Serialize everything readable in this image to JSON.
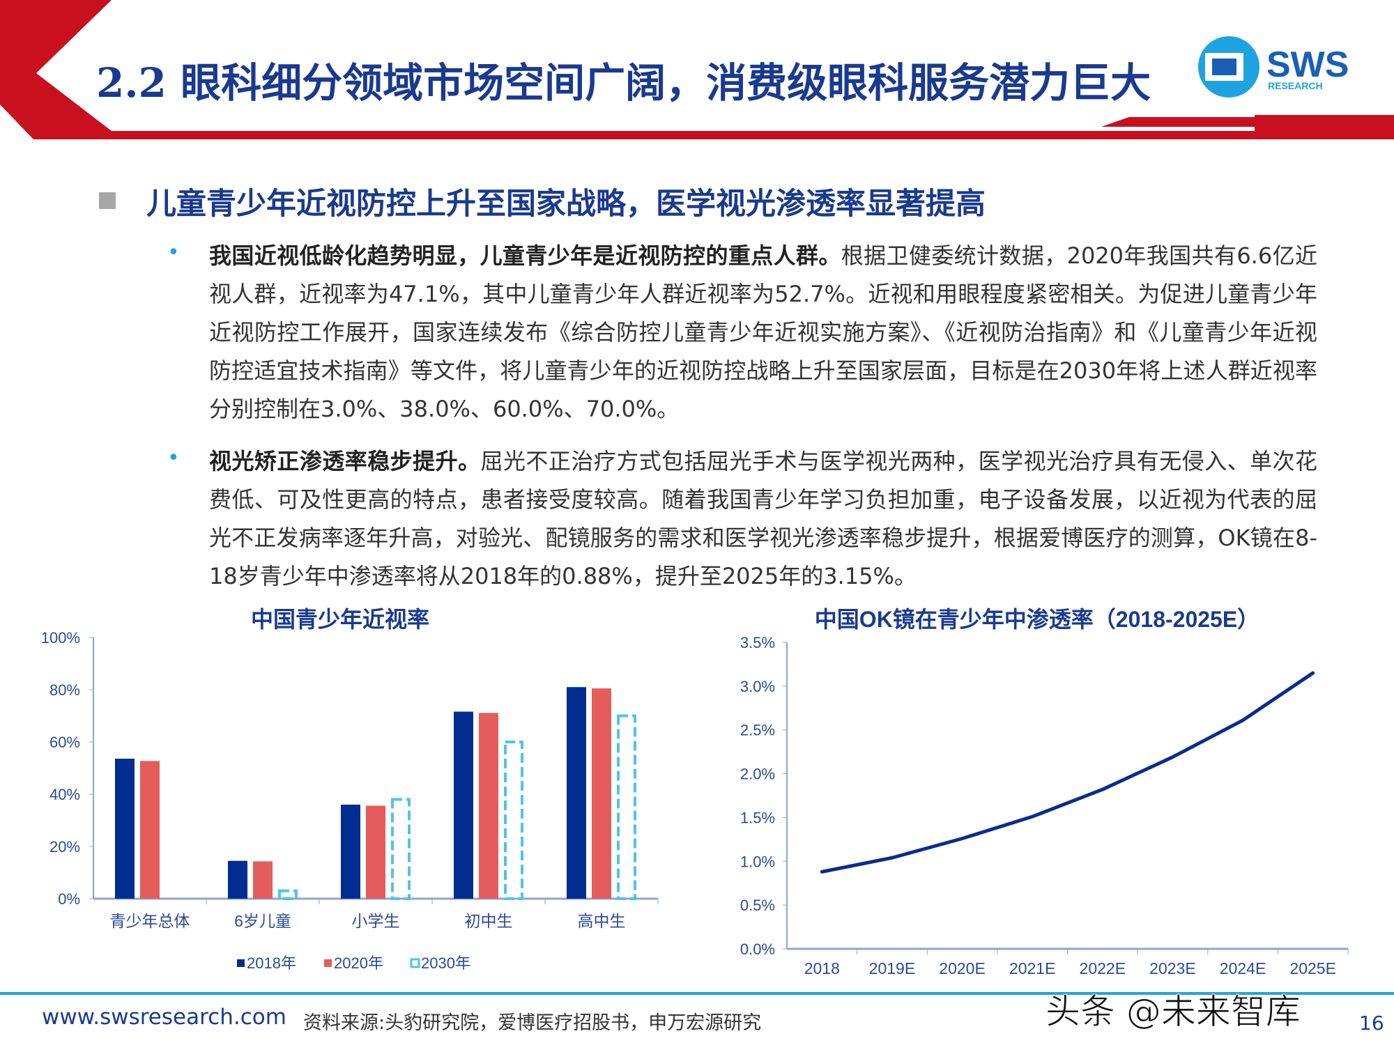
{
  "header": {
    "title": "2.2 眼科细分领域市场空间广阔，消费级眼科服务潜力巨大",
    "logo_text": "SWS",
    "logo_sub": "RESEARCH",
    "accent": "#c8101e"
  },
  "section": {
    "heading": "儿童青少年近视防控上升至国家战略，医学视光渗透率显著提高"
  },
  "bullets": [
    {
      "bold": "我国近视低龄化趋势明显，儿童青少年是近视防控的重点人群。",
      "text": "根据卫健委统计数据，2020年我国共有6.6亿近视人群，近视率为47.1%，其中儿童青少年人群近视率为52.7%。近视和用眼程度紧密相关。为促进儿童青少年近视防控工作展开，国家连续发布《综合防控儿童青少年近视实施方案》、《近视防治指南》和《儿童青少年近视防控适宜技术指南》等文件，将儿童青少年的近视防控战略上升至国家层面，目标是在2030年将上述人群近视率分别控制在3.0%、38.0%、60.0%、70.0%。"
    },
    {
      "bold": "视光矫正渗透率稳步提升。",
      "text": "屈光不正治疗方式包括屈光手术与医学视光两种，医学视光治疗具有无侵入、单次花费低、可及性更高的特点，患者接受度较高。随着我国青少年学习负担加重，电子设备发展，以近视为代表的屈光不正发病率逐年升高，对验光、配镜服务的需求和医学视光渗透率稳步提升，根据爱博医疗的测算，OK镜在8-18岁青少年中渗透率将从2018年的0.88%，提升至2025年的3.15%。"
    }
  ],
  "chart_data": [
    {
      "type": "bar",
      "title": "中国青少年近视率",
      "categories": [
        "青少年总体",
        "6岁儿童",
        "小学生",
        "初中生",
        "高中生"
      ],
      "yticks": [
        "0%",
        "20%",
        "40%",
        "60%",
        "80%",
        "100%"
      ],
      "ylim": [
        0,
        100
      ],
      "legend_position": "bottom",
      "series": [
        {
          "name": "2018年",
          "values": [
            53.6,
            14.5,
            36.0,
            71.6,
            81.0
          ],
          "color": "#002d8f",
          "style": "solid"
        },
        {
          "name": "2020年",
          "values": [
            52.7,
            14.3,
            35.6,
            71.1,
            80.5
          ],
          "color": "#e45c5c",
          "style": "solid"
        },
        {
          "name": "2030年",
          "values": [
            null,
            3.0,
            38.0,
            60.0,
            70.0
          ],
          "color": "#4dc3f0",
          "style": "dashed-outline"
        }
      ]
    },
    {
      "type": "line",
      "title": "中国OK镜在青少年中渗透率（2018-2025E）",
      "categories": [
        "2018",
        "2019E",
        "2020E",
        "2021E",
        "2022E",
        "2023E",
        "2024E",
        "2025E"
      ],
      "values": [
        0.88,
        1.04,
        1.26,
        1.51,
        1.82,
        2.19,
        2.61,
        3.15
      ],
      "yticks": [
        "0.0%",
        "0.5%",
        "1.0%",
        "1.5%",
        "2.0%",
        "2.5%",
        "3.0%",
        "3.5%"
      ],
      "ylim": [
        0,
        3.5
      ],
      "color": "#0b2c8e"
    }
  ],
  "footer": {
    "url": "www.swsresearch.com",
    "source": "资料来源:头豹研究院，爱博医疗招股书，申万宏源研究",
    "watermark": "头条 @未来智库",
    "page": "16"
  }
}
